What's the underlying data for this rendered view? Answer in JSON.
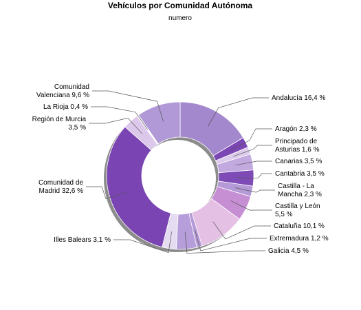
{
  "chart_data": {
    "type": "pie",
    "variant": "donut",
    "title": "Vehículos por Comunidad Autónoma",
    "subtitle": "numero",
    "slices": [
      {
        "name": "Andalucía",
        "label": "Andalucía 16,4 %",
        "value": 16.4,
        "color": "#a488cd"
      },
      {
        "name": "Aragón",
        "label": "Aragón 2,3 %",
        "value": 2.3,
        "color": "#7b45b4"
      },
      {
        "name": "Principado de Asturias",
        "label": "Principado de Asturias 1,6 %",
        "value": 1.6,
        "color": "#dccbeb"
      },
      {
        "name": "Canarias",
        "label": "Canarias 3,5 %",
        "value": 3.5,
        "color": "#c2a9df"
      },
      {
        "name": "Cantabria",
        "label": "Cantabria 3,5 %",
        "value": 3.5,
        "color": "#7e4bb6"
      },
      {
        "name": "Castilla - La Mancha",
        "label": "Castilla - La Mancha 2,3 %",
        "value": 2.3,
        "color": "#b49ad6"
      },
      {
        "name": "Castilla y León",
        "label": "Castilla y León 5,5 %",
        "value": 5.5,
        "color": "#c68fd3"
      },
      {
        "name": "Cataluña",
        "label": "Cataluña 10,1 %",
        "value": 10.1,
        "color": "#e5c0e5"
      },
      {
        "name": "Extremadura",
        "label": "Extremadura 1,2 %",
        "value": 1.2,
        "color": "#b49ad6"
      },
      {
        "name": "Galicia",
        "label": "Galicia 4,5 %",
        "value": 4.5,
        "color": "#b59ed9"
      },
      {
        "name": "Illes Balears",
        "label": "Illes Balears 3,1 %",
        "value": 3.1,
        "color": "#e6dcf2"
      },
      {
        "name": "Comunidad de Madrid",
        "label": "Comunidad de Madrid 32,6 %",
        "value": 32.6,
        "color": "#7a44b3"
      },
      {
        "name": "Región de Murcia",
        "label": "Región de Murcia 3,5 %",
        "value": 3.5,
        "color": "#dcc8ea"
      },
      {
        "name": "La Rioja",
        "label": "La Rioja 0,4 %",
        "value": 0.4,
        "color": "#ffffff"
      },
      {
        "name": "Comunidad Valenciana",
        "label": "Comunidad Valenciana 9,6 %",
        "value": 9.6,
        "color": "#b099d6"
      }
    ]
  }
}
